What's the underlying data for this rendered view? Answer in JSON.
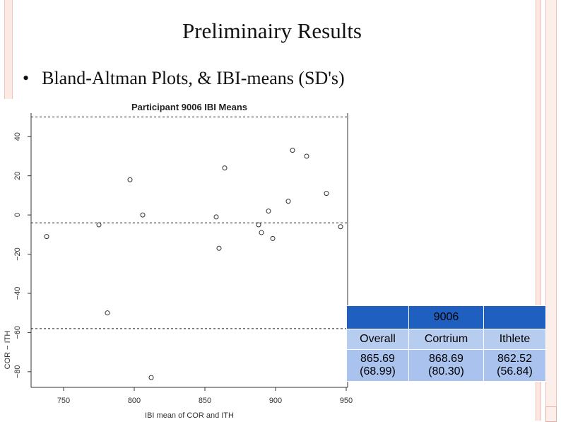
{
  "slide": {
    "title": "Preliminairy Results",
    "bullet": "Bland-Altman Plots, & IBI-means (SD's)"
  },
  "chart_data": {
    "type": "scatter",
    "title": "Participant 9006 IBI Means",
    "xlabel": "IBI mean of COR and ITH",
    "ylabel": "COR − ITH",
    "xlim": [
      727,
      951
    ],
    "ylim": [
      -88,
      52
    ],
    "xticks": [
      750,
      800,
      850,
      900,
      950
    ],
    "yticks": [
      -80,
      -60,
      -40,
      -20,
      0,
      20,
      40
    ],
    "reference_lines": [
      50,
      -4,
      -58
    ],
    "points": [
      {
        "x": 738,
        "y": -11
      },
      {
        "x": 775,
        "y": -5
      },
      {
        "x": 781,
        "y": -50
      },
      {
        "x": 797,
        "y": 18
      },
      {
        "x": 806,
        "y": 0
      },
      {
        "x": 812,
        "y": -83
      },
      {
        "x": 858,
        "y": -1
      },
      {
        "x": 860,
        "y": -17
      },
      {
        "x": 864,
        "y": 24
      },
      {
        "x": 888,
        "y": -5
      },
      {
        "x": 890,
        "y": -9
      },
      {
        "x": 895,
        "y": 2
      },
      {
        "x": 898,
        "y": -12
      },
      {
        "x": 909,
        "y": 7
      },
      {
        "x": 912,
        "y": 33
      },
      {
        "x": 922,
        "y": 30
      },
      {
        "x": 936,
        "y": 11
      },
      {
        "x": 946,
        "y": -6
      }
    ],
    "grid": false,
    "legend": "none"
  },
  "table": {
    "header": [
      "",
      "9006",
      ""
    ],
    "columns": [
      "Overall",
      "Cortrium",
      "Ithlete"
    ],
    "means": [
      "865.69",
      "868.69",
      "862.52"
    ],
    "sds": [
      "(68.99)",
      "(80.30)",
      "(56.84)"
    ]
  }
}
